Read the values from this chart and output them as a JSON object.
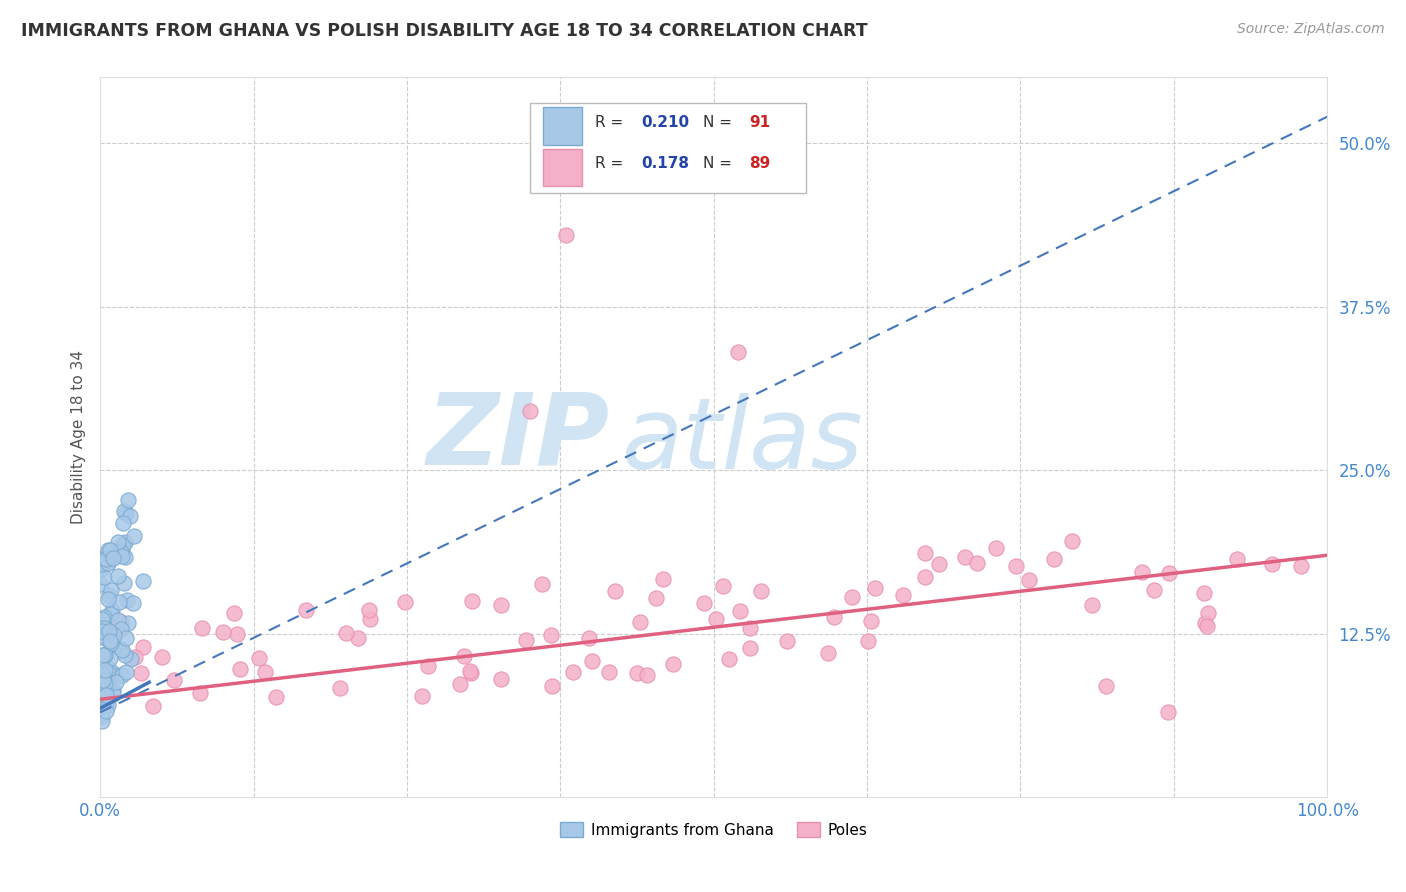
{
  "title": "IMMIGRANTS FROM GHANA VS POLISH DISABILITY AGE 18 TO 34 CORRELATION CHART",
  "source": "Source: ZipAtlas.com",
  "ylabel": "Disability Age 18 to 34",
  "xlim": [
    0,
    1.0
  ],
  "ylim": [
    0,
    0.55
  ],
  "xticks": [
    0.0,
    0.125,
    0.25,
    0.375,
    0.5,
    0.625,
    0.75,
    0.875,
    1.0
  ],
  "yticks": [
    0.0,
    0.125,
    0.25,
    0.375,
    0.5
  ],
  "ghana_color": "#a8c8e8",
  "poles_color": "#f4b0c8",
  "ghana_edge_color": "#7aaad0",
  "poles_edge_color": "#e890b0",
  "ghana_line_color": "#4477bb",
  "poles_line_color": "#e06080",
  "ghana_R": 0.21,
  "ghana_N": 91,
  "poles_R": 0.178,
  "poles_N": 89,
  "legend_R_color": "#2244aa",
  "legend_N_color": "#cc2222",
  "watermark_zip": "ZIP",
  "watermark_atlas": "atlas",
  "watermark_color": "#d0e4f4",
  "background_color": "#ffffff",
  "grid_color": "#cccccc",
  "title_color": "#333333",
  "axis_label_color": "#555555",
  "tick_label_color": "#4488cc",
  "ghana_line_start_x": 0.0,
  "ghana_line_end_x": 1.0,
  "ghana_line_start_y": 0.065,
  "ghana_line_end_y": 0.52,
  "poles_line_start_x": 0.0,
  "poles_line_end_x": 1.0,
  "poles_line_start_y": 0.075,
  "poles_line_end_y": 0.185
}
